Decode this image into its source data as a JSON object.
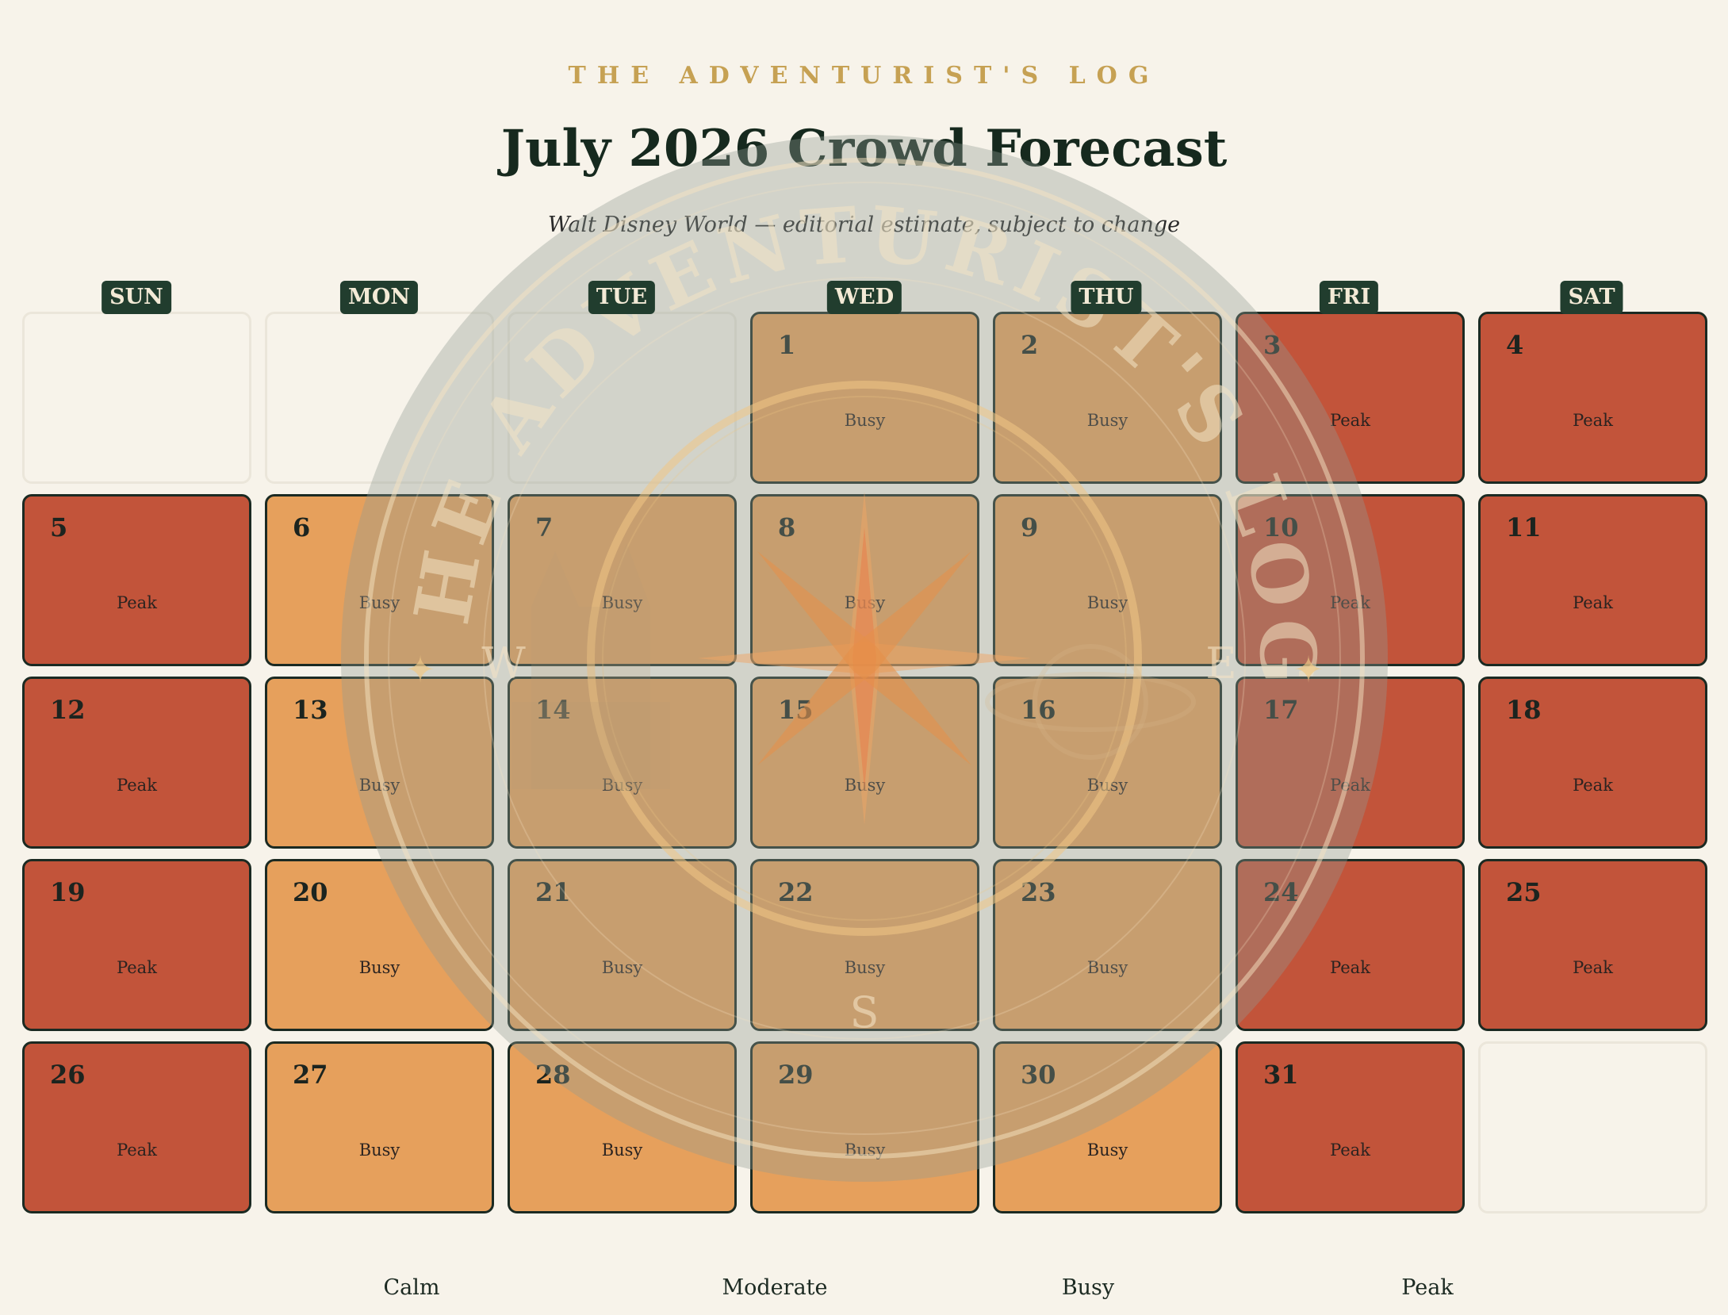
{
  "header": {
    "kicker": "THE ADVENTURIST'S LOG",
    "title": "July 2026 Crowd Forecast",
    "subtitle": "Walt Disney World — editorial estimate, subject to change"
  },
  "weekdays": [
    "SUN",
    "MON",
    "TUE",
    "WED",
    "THU",
    "FRI",
    "SAT"
  ],
  "calendar": {
    "month": "July",
    "year": 2026,
    "days": [
      {
        "day": "1",
        "level": "Busy"
      },
      {
        "day": "2",
        "level": "Busy"
      },
      {
        "day": "3",
        "level": "Peak"
      },
      {
        "day": "4",
        "level": "Peak"
      },
      {
        "day": "5",
        "level": "Peak"
      },
      {
        "day": "6",
        "level": "Busy"
      },
      {
        "day": "7",
        "level": "Busy"
      },
      {
        "day": "8",
        "level": "Busy"
      },
      {
        "day": "9",
        "level": "Busy"
      },
      {
        "day": "10",
        "level": "Peak"
      },
      {
        "day": "11",
        "level": "Peak"
      },
      {
        "day": "12",
        "level": "Peak"
      },
      {
        "day": "13",
        "level": "Busy"
      },
      {
        "day": "14",
        "level": "Busy"
      },
      {
        "day": "15",
        "level": "Busy"
      },
      {
        "day": "16",
        "level": "Busy"
      },
      {
        "day": "17",
        "level": "Peak"
      },
      {
        "day": "18",
        "level": "Peak"
      },
      {
        "day": "19",
        "level": "Peak"
      },
      {
        "day": "20",
        "level": "Busy"
      },
      {
        "day": "21",
        "level": "Busy"
      },
      {
        "day": "22",
        "level": "Busy"
      },
      {
        "day": "23",
        "level": "Busy"
      },
      {
        "day": "24",
        "level": "Peak"
      },
      {
        "day": "25",
        "level": "Peak"
      },
      {
        "day": "26",
        "level": "Peak"
      },
      {
        "day": "27",
        "level": "Busy"
      },
      {
        "day": "28",
        "level": "Busy"
      },
      {
        "day": "29",
        "level": "Busy"
      },
      {
        "day": "30",
        "level": "Busy"
      },
      {
        "day": "31",
        "level": "Peak"
      }
    ]
  },
  "legend": [
    "Calm",
    "Moderate",
    "Busy",
    "Peak"
  ],
  "seal": {
    "text": "THE ADVENTURIST'S LOG",
    "compass": [
      "W",
      "E",
      "S"
    ]
  },
  "colors": {
    "background": "#f7f3ea",
    "busy": "#e6a05c",
    "peak": "#c2543a",
    "weekday_badge": "#213d2e",
    "kicker": "#c6a153"
  }
}
